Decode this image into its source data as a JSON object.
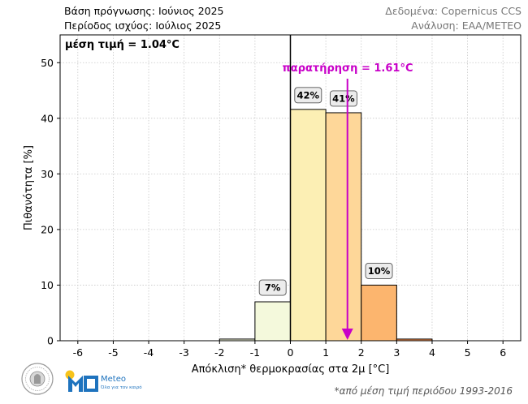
{
  "header": {
    "forecast_base": "Βάση πρόγνωσης: Ιούνιος 2025",
    "valid_period": "Περίοδος ισχύος: Ιούλιος 2025",
    "data_source": "Δεδομένα: Copernicus CCS",
    "analysis": "Ανάλυση: ΕΑΑ/ΜΕΤΕΟ"
  },
  "chart_data": {
    "type": "bar",
    "xlabel": "Απόκλιση* θερμοκρασίας στα 2μ [°C]",
    "ylabel": "Πιθανότητα [%]",
    "xlim": [
      -6.5,
      6.5
    ],
    "ylim": [
      0,
      55
    ],
    "xticks": [
      "-6",
      "-5",
      "-4",
      "-3",
      "-2",
      "-1",
      "0",
      "1",
      "2",
      "3",
      "4",
      "5",
      "6"
    ],
    "yticks": [
      "0",
      "10",
      "20",
      "30",
      "40",
      "50"
    ],
    "grid": true,
    "bins": [
      {
        "x0": -2,
        "x1": -1,
        "value": 0.3,
        "label": "",
        "color": "#f4f9dc"
      },
      {
        "x0": -1,
        "x1": 0,
        "value": 7,
        "label": "7%",
        "color": "#f4f9dc"
      },
      {
        "x0": 0,
        "x1": 1,
        "value": 41.6,
        "label": "42%",
        "color": "#fcefb4"
      },
      {
        "x0": 1,
        "x1": 2,
        "value": 41,
        "label": "41%",
        "color": "#fed799"
      },
      {
        "x0": 2,
        "x1": 3,
        "value": 10,
        "label": "10%",
        "color": "#fcb56e"
      },
      {
        "x0": 3,
        "x1": 4,
        "value": 0.3,
        "label": "",
        "color": "#fb9452"
      }
    ],
    "mean_text": "μέση τιμή = 1.04°C",
    "observation": {
      "value": 1.61,
      "label": "παρατήρηση = 1.61°C",
      "color": "#c800c8"
    }
  },
  "logos": {
    "meteo_name": "Meteo",
    "meteo_tagline": "Όλα για τον καιρό"
  },
  "footnote": "*από μέση τιμή περιόδου 1993-2016"
}
